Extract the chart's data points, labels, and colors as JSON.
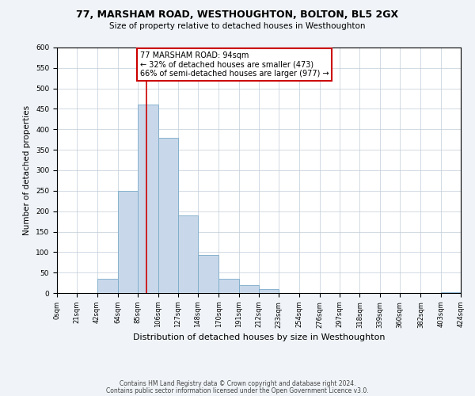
{
  "title": "77, MARSHAM ROAD, WESTHOUGHTON, BOLTON, BL5 2GX",
  "subtitle": "Size of property relative to detached houses in Westhoughton",
  "xlabel": "Distribution of detached houses by size in Westhoughton",
  "ylabel": "Number of detached properties",
  "bin_edges": [
    0,
    21,
    42,
    64,
    85,
    106,
    127,
    148,
    170,
    191,
    212,
    233,
    254,
    276,
    297,
    318,
    339,
    360,
    382,
    403,
    424
  ],
  "bin_counts": [
    0,
    0,
    35,
    250,
    460,
    380,
    190,
    93,
    35,
    20,
    10,
    0,
    0,
    0,
    0,
    0,
    0,
    0,
    0,
    2
  ],
  "bar_color": "#c8d8ea",
  "bar_edge_color": "#7aaac8",
  "vline_x": 94,
  "vline_color": "#cc0000",
  "annotation_text": "77 MARSHAM ROAD: 94sqm\n← 32% of detached houses are smaller (473)\n66% of semi-detached houses are larger (977) →",
  "annotation_box_color": "#ffffff",
  "annotation_box_edge_color": "#cc0000",
  "ylim": [
    0,
    600
  ],
  "yticks": [
    0,
    50,
    100,
    150,
    200,
    250,
    300,
    350,
    400,
    450,
    500,
    550,
    600
  ],
  "tick_labels": [
    "0sqm",
    "21sqm",
    "42sqm",
    "64sqm",
    "85sqm",
    "106sqm",
    "127sqm",
    "148sqm",
    "170sqm",
    "191sqm",
    "212sqm",
    "233sqm",
    "254sqm",
    "276sqm",
    "297sqm",
    "318sqm",
    "339sqm",
    "360sqm",
    "382sqm",
    "403sqm",
    "424sqm"
  ],
  "footer1": "Contains HM Land Registry data © Crown copyright and database right 2024.",
  "footer2": "Contains public sector information licensed under the Open Government Licence v3.0.",
  "bg_color": "#f0f4f8",
  "plot_bg_color": "#ffffff",
  "title_fontsize": 9,
  "subtitle_fontsize": 7.5,
  "xlabel_fontsize": 8,
  "ylabel_fontsize": 7.5,
  "tick_fontsize": 6,
  "footer_fontsize": 5.5
}
